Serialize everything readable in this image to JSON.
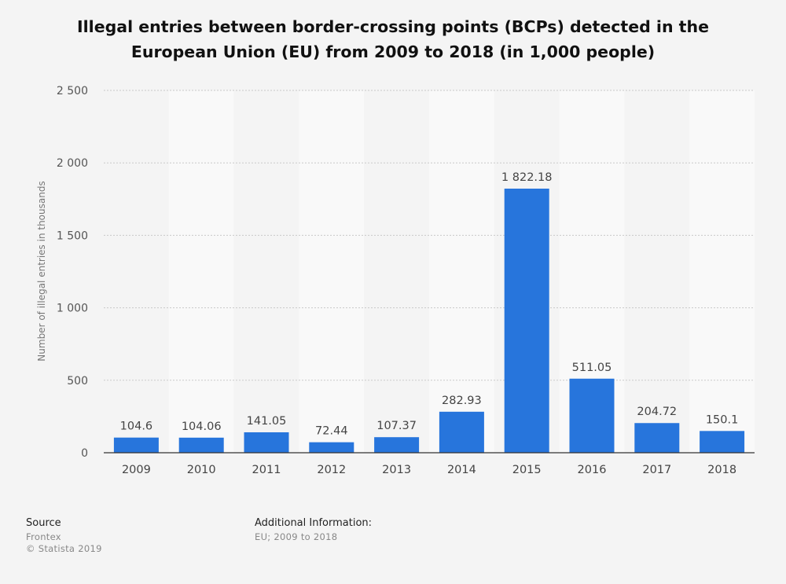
{
  "chart_data": {
    "type": "bar",
    "title": "Illegal entries between border-crossing points (BCPs) detected in the European Union (EU) from 2009 to 2018 (in 1,000 people)",
    "categories": [
      "2009",
      "2010",
      "2011",
      "2012",
      "2013",
      "2014",
      "2015",
      "2016",
      "2017",
      "2018"
    ],
    "values": [
      104.6,
      104.06,
      141.05,
      72.44,
      107.37,
      282.93,
      1822.18,
      511.05,
      204.72,
      150.1
    ],
    "value_labels": [
      "104.6",
      "104.06",
      "141.05",
      "72.44",
      "107.37",
      "282.93",
      "1 822.18",
      "511.05",
      "204.72",
      "150.1"
    ],
    "xlabel": "",
    "ylabel": "Number of illegal entries in thousands",
    "ylim": [
      0,
      2500
    ],
    "yticks": [
      0,
      500,
      1000,
      1500,
      2000,
      2500
    ],
    "ytick_labels": [
      "0",
      "500",
      "1 000",
      "1 500",
      "2 000",
      "2 500"
    ],
    "grid": true,
    "bar_color": "#2775dc"
  },
  "footer": {
    "source_heading": "Source",
    "source_name": "Frontex",
    "copyright": "© Statista 2019",
    "additional_heading": "Additional Information:",
    "additional_text": "EU; 2009 to 2018"
  }
}
